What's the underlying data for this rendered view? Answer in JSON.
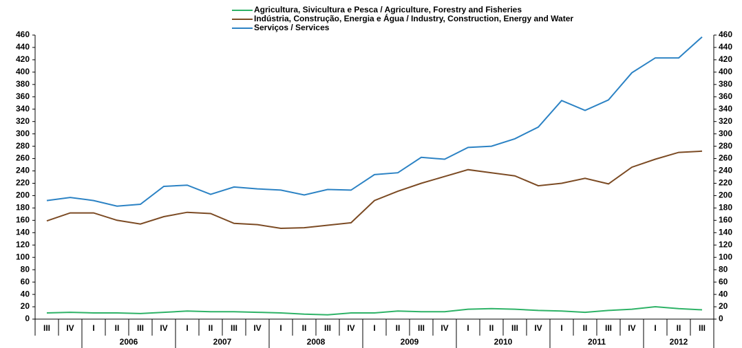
{
  "chart_data": {
    "type": "line",
    "categories": [
      "III",
      "IV",
      "I",
      "II",
      "III",
      "IV",
      "I",
      "II",
      "III",
      "IV",
      "I",
      "II",
      "III",
      "IV",
      "I",
      "II",
      "III",
      "IV",
      "I",
      "II",
      "III",
      "IV",
      "I",
      "II",
      "III",
      "IV",
      "I",
      "II",
      "III"
    ],
    "years": [
      "2006",
      "2007",
      "2008",
      "2009",
      "2010",
      "2011",
      "2012"
    ],
    "series": [
      {
        "name": "Agricultura, Sivicultura e Pesca / Agriculture, Forestry and Fisheries",
        "color": "#2db266",
        "values": [
          10,
          11,
          10,
          10,
          9,
          11,
          13,
          12,
          12,
          11,
          10,
          8,
          7,
          10,
          10,
          13,
          12,
          12,
          16,
          17,
          16,
          14,
          13,
          11,
          14,
          16,
          20,
          17,
          15
        ]
      },
      {
        "name": "Indústria, Construção, Energia e Água / Industry, Construction, Energy and Water",
        "color": "#7b4a23",
        "values": [
          159,
          172,
          172,
          160,
          154,
          166,
          173,
          171,
          155,
          153,
          147,
          148,
          152,
          156,
          192,
          207,
          220,
          231,
          242,
          237,
          232,
          216,
          220,
          228,
          219,
          246,
          259,
          270,
          272
        ]
      },
      {
        "name": "Serviços / Services",
        "color": "#2b82c4",
        "values": [
          192,
          197,
          192,
          183,
          186,
          215,
          217,
          202,
          214,
          211,
          209,
          201,
          210,
          209,
          234,
          237,
          262,
          259,
          278,
          280,
          292,
          311,
          354,
          338,
          355,
          399,
          423,
          423,
          457
        ]
      }
    ],
    "ylim": [
      0,
      460
    ],
    "yticks": [
      0,
      20,
      40,
      60,
      80,
      100,
      120,
      140,
      160,
      180,
      200,
      220,
      240,
      260,
      280,
      300,
      320,
      340,
      360,
      380,
      400,
      420,
      440,
      460
    ],
    "y2lim": [
      0,
      460
    ],
    "y2ticks": [
      0,
      20,
      40,
      60,
      80,
      100,
      120,
      140,
      160,
      180,
      200,
      220,
      240,
      260,
      280,
      300,
      320,
      340,
      360,
      380,
      400,
      420,
      440,
      460
    ],
    "grid": false
  }
}
